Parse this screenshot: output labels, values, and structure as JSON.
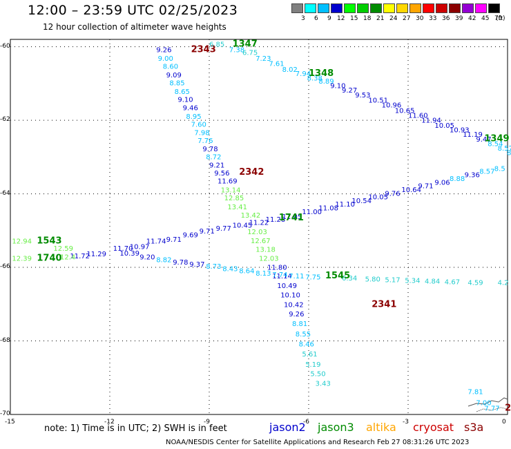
{
  "header": {
    "title": "12:00 – 23:59 UTC 02/25/2023",
    "subtitle": "12 hour collection of altimeter wave heights"
  },
  "legend": {
    "unit": "(ft)",
    "bins": [
      {
        "label": "3",
        "color": "#808080"
      },
      {
        "label": "6",
        "color": "#00ffff"
      },
      {
        "label": "9",
        "color": "#00bfff"
      },
      {
        "label": "12",
        "color": "#0000cd"
      },
      {
        "label": "15",
        "color": "#00ff00"
      },
      {
        "label": "18",
        "color": "#00cd00"
      },
      {
        "label": "21",
        "color": "#008b00"
      },
      {
        "label": "24",
        "color": "#ffff00"
      },
      {
        "label": "27",
        "color": "#ffd700"
      },
      {
        "label": "30",
        "color": "#ffa500"
      },
      {
        "label": "33",
        "color": "#ff0000"
      },
      {
        "label": "36",
        "color": "#cd0000"
      },
      {
        "label": "39",
        "color": "#8b0000"
      },
      {
        "label": "42",
        "color": "#9400d3"
      },
      {
        "label": "45",
        "color": "#ff00ff"
      },
      {
        "label": "70",
        "color": "#000000"
      }
    ]
  },
  "axes": {
    "lat_labels": [
      "-60",
      "-62",
      "-64",
      "-66",
      "-68",
      "-70"
    ],
    "lon_labels": [
      "-15",
      "-12",
      "-9",
      "-6",
      "-3",
      "0"
    ]
  },
  "footer": {
    "note": "note:  1) Time is in UTC;  2) SWH is in feet",
    "satellites": [
      {
        "name": "jason2",
        "color": "#0000cd"
      },
      {
        "name": "jason3",
        "color": "#008b00"
      },
      {
        "name": "altika",
        "color": "#ffa500"
      },
      {
        "name": "cryosat",
        "color": "#cd0000"
      },
      {
        "name": "s3a",
        "color": "#8b0000"
      }
    ],
    "credit": "NOAA/NESDIS Center for Satellite Applications and Research     Feb 27 08:31:26 UTC 2023"
  },
  "colors": {
    "blue": "#0000cd",
    "cyan": "#00bfff",
    "lgreen": "#66ee44",
    "dgreen": "#008b00",
    "dred": "#8b0000",
    "ltcyan": "#22cccc"
  },
  "tracks": [
    {
      "id": "2343",
      "time_color": "dred",
      "tx": -9.55,
      "ty": -60.15,
      "pts": [
        {
          "v": "9.26",
          "c": "blue",
          "x": -10.6,
          "y": -60.15
        },
        {
          "v": "9.00",
          "c": "cyan",
          "x": -10.55,
          "y": -60.38
        },
        {
          "v": "8.60",
          "c": "cyan",
          "x": -10.4,
          "y": -60.6
        },
        {
          "v": "9.09",
          "c": "blue",
          "x": -10.3,
          "y": -60.83
        },
        {
          "v": "8.85",
          "c": "cyan",
          "x": -10.2,
          "y": -61.05
        },
        {
          "v": "8.65",
          "c": "cyan",
          "x": -10.05,
          "y": -61.28
        },
        {
          "v": "9.10",
          "c": "blue",
          "x": -9.95,
          "y": -61.5
        },
        {
          "v": "9.46",
          "c": "blue",
          "x": -9.8,
          "y": -61.73
        },
        {
          "v": "8.95",
          "c": "cyan",
          "x": -9.7,
          "y": -61.96
        },
        {
          "v": "7.60",
          "c": "cyan",
          "x": -9.55,
          "y": -62.18
        },
        {
          "v": "7.98",
          "c": "cyan",
          "x": -9.45,
          "y": -62.4
        },
        {
          "v": "7.76",
          "c": "cyan",
          "x": -9.35,
          "y": -62.62
        },
        {
          "v": "9.78",
          "c": "blue",
          "x": -9.2,
          "y": -62.84
        },
        {
          "v": "8.72",
          "c": "cyan",
          "x": -9.1,
          "y": -63.06
        },
        {
          "v": "9.21",
          "c": "blue",
          "x": -9.0,
          "y": -63.28
        },
        {
          "v": "9.56",
          "c": "blue",
          "x": -8.85,
          "y": -63.5
        },
        {
          "v": "11.69",
          "c": "blue",
          "x": -8.75,
          "y": -63.72
        }
      ]
    },
    {
      "id": "2342",
      "time_color": "dred",
      "tx": -8.1,
      "ty": -63.48,
      "pts": [
        {
          "v": "13.14",
          "c": "lgreen",
          "x": -8.65,
          "y": -63.96
        },
        {
          "v": "12.85",
          "c": "lgreen",
          "x": -8.55,
          "y": -64.18
        },
        {
          "v": "13.41",
          "c": "lgreen",
          "x": -8.45,
          "y": -64.42
        },
        {
          "v": "13.42",
          "c": "lgreen",
          "x": -8.05,
          "y": -64.65
        },
        {
          "v": "12.03",
          "c": "lgreen",
          "x": -7.85,
          "y": -65.1
        },
        {
          "v": "12.67",
          "c": "lgreen",
          "x": -7.75,
          "y": -65.34
        },
        {
          "v": "13.18",
          "c": "lgreen",
          "x": -7.6,
          "y": -65.58
        },
        {
          "v": "12.03",
          "c": "lgreen",
          "x": -7.5,
          "y": -65.82
        },
        {
          "v": "11.80",
          "c": "blue",
          "x": -7.25,
          "y": -66.06
        },
        {
          "v": "11.14",
          "c": "blue",
          "x": -7.1,
          "y": -66.3
        },
        {
          "v": "10.49",
          "c": "blue",
          "x": -6.95,
          "y": -66.56
        },
        {
          "v": "10.10",
          "c": "blue",
          "x": -6.85,
          "y": -66.82
        }
      ]
    },
    {
      "id": "2341",
      "time_color": "dred",
      "tx": -4.1,
      "ty": -67.08,
      "pts": [
        {
          "v": "10.42",
          "c": "blue",
          "x": -6.75,
          "y": -67.08
        },
        {
          "v": "9.26",
          "c": "blue",
          "x": -6.6,
          "y": -67.33
        },
        {
          "v": "8.81",
          "c": "cyan",
          "x": -6.5,
          "y": -67.6
        },
        {
          "v": "8.55",
          "c": "cyan",
          "x": -6.4,
          "y": -67.88
        },
        {
          "v": "8.46",
          "c": "cyan",
          "x": -6.3,
          "y": -68.15
        },
        {
          "v": "5.61",
          "c": "ltcyan",
          "x": -6.2,
          "y": -68.42
        },
        {
          "v": "5.19",
          "c": "ltcyan",
          "x": -6.1,
          "y": -68.7
        },
        {
          "v": "5.50",
          "c": "ltcyan",
          "x": -5.95,
          "y": -68.96
        },
        {
          "v": "3.43",
          "c": "ltcyan",
          "x": -5.8,
          "y": -69.22
        }
      ]
    },
    {
      "id": "1347",
      "time_color": "dgreen",
      "tx": -8.3,
      "ty": -60.0,
      "pts": [
        {
          "v": "6.85",
          "c": "ltcyan",
          "x": -9.0,
          "y": -60.0
        },
        {
          "v": "7.38",
          "c": "cyan",
          "x": -8.4,
          "y": -60.15
        },
        {
          "v": "6.75",
          "c": "ltcyan",
          "x": -8.0,
          "y": -60.22
        },
        {
          "v": "7.23",
          "c": "cyan",
          "x": -7.6,
          "y": -60.38
        },
        {
          "v": "7.61",
          "c": "cyan",
          "x": -7.2,
          "y": -60.52
        },
        {
          "v": "8.02",
          "c": "cyan",
          "x": -6.8,
          "y": -60.68
        },
        {
          "v": "7.94",
          "c": "cyan",
          "x": -6.4,
          "y": -60.8
        },
        {
          "v": "8.38",
          "c": "cyan",
          "x": -6.05,
          "y": -60.92
        },
        {
          "v": "8.89",
          "c": "cyan",
          "x": -5.7,
          "y": -61.0
        },
        {
          "v": "9.10",
          "c": "blue",
          "x": -5.35,
          "y": -61.12
        },
        {
          "v": "9.27",
          "c": "blue",
          "x": -5.0,
          "y": -61.25
        },
        {
          "v": "9.53",
          "c": "blue",
          "x": -4.6,
          "y": -61.38
        },
        {
          "v": "10.51",
          "c": "blue",
          "x": -4.2,
          "y": -61.52
        },
        {
          "v": "10.96",
          "c": "blue",
          "x": -3.8,
          "y": -61.65
        },
        {
          "v": "10.65",
          "c": "blue",
          "x": -3.4,
          "y": -61.8
        },
        {
          "v": "11.60",
          "c": "blue",
          "x": -3.0,
          "y": -61.93
        },
        {
          "v": "11.94",
          "c": "blue",
          "x": -2.6,
          "y": -62.06
        },
        {
          "v": "10.05",
          "c": "blue",
          "x": -2.2,
          "y": -62.2
        },
        {
          "v": "10.93",
          "c": "blue",
          "x": -1.75,
          "y": -62.33
        },
        {
          "v": "11.19",
          "c": "blue",
          "x": -1.35,
          "y": -62.45
        },
        {
          "v": "9.47",
          "c": "blue",
          "x": -0.95,
          "y": -62.58
        },
        {
          "v": "8.54",
          "c": "cyan",
          "x": -0.6,
          "y": -62.7
        },
        {
          "v": "8.57",
          "c": "cyan",
          "x": -0.3,
          "y": -62.82
        },
        {
          "v": "8.95",
          "c": "cyan",
          "x": -0.02,
          "y": -62.95
        }
      ]
    },
    {
      "id": "1348",
      "time_color": "dgreen",
      "tx": -6.0,
      "ty": -60.8,
      "pts": []
    },
    {
      "id": "1349",
      "time_color": "dgreen",
      "tx": -0.7,
      "ty": -62.57,
      "pts": []
    },
    {
      "id": "1543",
      "time_color": "dgreen",
      "tx": -14.2,
      "ty": -65.35,
      "pts": [
        {
          "v": "12.94",
          "c": "lgreen",
          "x": -14.95,
          "y": -65.35
        },
        {
          "v": "12.59",
          "c": "lgreen",
          "x": -13.7,
          "y": -65.55
        },
        {
          "v": "11.72",
          "c": "blue",
          "x": -13.2,
          "y": -65.75
        },
        {
          "v": "11.29",
          "c": "blue",
          "x": -12.7,
          "y": -65.7
        },
        {
          "v": "11.70",
          "c": "blue",
          "x": -11.9,
          "y": -65.55
        },
        {
          "v": "10.97",
          "c": "blue",
          "x": -11.4,
          "y": -65.5
        },
        {
          "v": "11.74",
          "c": "blue",
          "x": -10.9,
          "y": -65.35
        },
        {
          "v": "9.71",
          "c": "blue",
          "x": -10.3,
          "y": -65.3
        },
        {
          "v": "9.69",
          "c": "blue",
          "x": -9.8,
          "y": -65.18
        },
        {
          "v": "9.71",
          "c": "blue",
          "x": -9.3,
          "y": -65.08
        },
        {
          "v": "9.77",
          "c": "blue",
          "x": -8.8,
          "y": -65.0
        },
        {
          "v": "10.45",
          "c": "blue",
          "x": -8.3,
          "y": -64.92
        },
        {
          "v": "11.22",
          "c": "blue",
          "x": -7.8,
          "y": -64.84
        },
        {
          "v": "11.28",
          "c": "blue",
          "x": -7.3,
          "y": -64.76
        },
        {
          "v": "11.05",
          "c": "blue",
          "x": -6.8,
          "y": -64.68
        },
        {
          "v": "11.00",
          "c": "blue",
          "x": -6.2,
          "y": -64.55
        },
        {
          "v": "11.08",
          "c": "blue",
          "x": -5.7,
          "y": -64.45
        },
        {
          "v": "11.10",
          "c": "blue",
          "x": -5.2,
          "y": -64.35
        },
        {
          "v": "10.54",
          "c": "blue",
          "x": -4.7,
          "y": -64.25
        },
        {
          "v": "10.05",
          "c": "blue",
          "x": -4.2,
          "y": -64.15
        },
        {
          "v": "9.76",
          "c": "blue",
          "x": -3.7,
          "y": -64.05
        },
        {
          "v": "10.64",
          "c": "blue",
          "x": -3.2,
          "y": -63.95
        },
        {
          "v": "9.71",
          "c": "blue",
          "x": -2.7,
          "y": -63.85
        },
        {
          "v": "9.06",
          "c": "blue",
          "x": -2.2,
          "y": -63.75
        },
        {
          "v": "8.88",
          "c": "cyan",
          "x": -1.75,
          "y": -63.65
        },
        {
          "v": "9.36",
          "c": "blue",
          "x": -1.3,
          "y": -63.55
        },
        {
          "v": "8.57",
          "c": "cyan",
          "x": -0.85,
          "y": -63.45
        },
        {
          "v": "8.5",
          "c": "cyan",
          "x": -0.4,
          "y": -63.38
        }
      ]
    },
    {
      "id": "1741",
      "time_color": "dgreen",
      "tx": -6.9,
      "ty": -64.72,
      "pts": []
    },
    {
      "id": "1740",
      "time_color": "dgreen",
      "tx": -14.2,
      "ty": -65.82,
      "pts": [
        {
          "v": "12.39",
          "c": "lgreen",
          "x": -14.95,
          "y": -65.82
        },
        {
          "v": "12.4",
          "c": "lgreen",
          "x": -13.5,
          "y": -65.78
        },
        {
          "v": "10.39",
          "c": "blue",
          "x": -11.7,
          "y": -65.68
        },
        {
          "v": "9.20",
          "c": "blue",
          "x": -11.1,
          "y": -65.78
        },
        {
          "v": "8.82",
          "c": "cyan",
          "x": -10.6,
          "y": -65.86
        },
        {
          "v": "9.78",
          "c": "blue",
          "x": -10.1,
          "y": -65.92
        },
        {
          "v": "9.37",
          "c": "blue",
          "x": -9.6,
          "y": -65.98
        },
        {
          "v": "8.73",
          "c": "cyan",
          "x": -9.1,
          "y": -66.04
        },
        {
          "v": "8.43",
          "c": "cyan",
          "x": -8.6,
          "y": -66.1
        },
        {
          "v": "8.64",
          "c": "cyan",
          "x": -8.1,
          "y": -66.16
        },
        {
          "v": "8.13",
          "c": "cyan",
          "x": -7.6,
          "y": -66.22
        },
        {
          "v": "7.74",
          "c": "cyan",
          "x": -7.1,
          "y": -66.26
        },
        {
          "v": "7.11",
          "c": "cyan",
          "x": -6.6,
          "y": -66.3
        },
        {
          "v": "7.75",
          "c": "cyan",
          "x": -6.1,
          "y": -66.33
        },
        {
          "v": "6.34",
          "c": "ltcyan",
          "x": -5.0,
          "y": -66.36
        },
        {
          "v": "5.80",
          "c": "ltcyan",
          "x": -4.3,
          "y": -66.38
        },
        {
          "v": "5.17",
          "c": "ltcyan",
          "x": -3.7,
          "y": -66.4
        },
        {
          "v": "5.34",
          "c": "ltcyan",
          "x": -3.1,
          "y": -66.42
        },
        {
          "v": "4.84",
          "c": "ltcyan",
          "x": -2.5,
          "y": -66.44
        },
        {
          "v": "4.67",
          "c": "ltcyan",
          "x": -1.9,
          "y": -66.46
        },
        {
          "v": "4.59",
          "c": "ltcyan",
          "x": -1.2,
          "y": -66.48
        },
        {
          "v": "4.2",
          "c": "ltcyan",
          "x": -0.3,
          "y": -66.48
        }
      ]
    },
    {
      "id": "1545",
      "time_color": "dgreen",
      "tx": -5.5,
      "ty": -66.3,
      "pts": []
    },
    {
      "id": "2",
      "time_color": "dred",
      "tx": -0.08,
      "ty": -69.9,
      "pts": [
        {
          "v": "7.81",
          "c": "cyan",
          "x": -1.2,
          "y": -69.45
        },
        {
          "v": "7.00",
          "c": "cyan",
          "x": -0.95,
          "y": -69.75
        },
        {
          "v": "7.77",
          "c": "cyan",
          "x": -0.7,
          "y": -69.9
        }
      ]
    }
  ]
}
